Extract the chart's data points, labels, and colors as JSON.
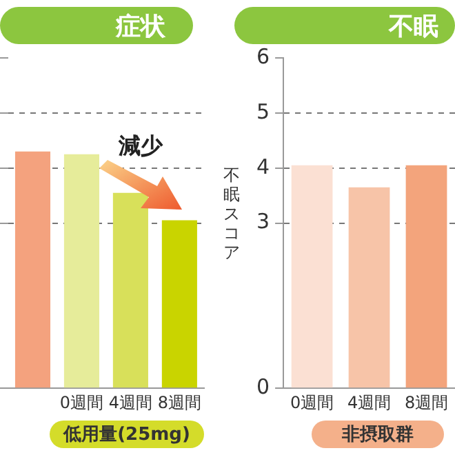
{
  "chart_data": [
    {
      "type": "bar",
      "title": "症状",
      "categories": [
        null,
        "0週間",
        "4週間",
        "8週間"
      ],
      "values": [
        4.3,
        4.25,
        3.55,
        3.05
      ],
      "colors": [
        "#f4a27e",
        "#e6ec9a",
        "#d8e05a",
        "#c9d400"
      ],
      "ylim": [
        0,
        6
      ],
      "yticks": [
        0,
        3,
        4,
        5,
        6
      ],
      "grid": "y",
      "tick_labels": "x",
      "annotations": [
        "減少",
        "低用量(25mg)"
      ]
    },
    {
      "type": "bar",
      "title": "不眠",
      "ylabel": "不眠スコア",
      "categories": [
        "0週間",
        "4週間",
        "8週間"
      ],
      "values": [
        4.05,
        3.65,
        4.05
      ],
      "colors": [
        "#fbe0d3",
        "#f7c4a8",
        "#f3a47c"
      ],
      "ylim": [
        0,
        6
      ],
      "yticks": [
        0,
        3,
        4,
        5,
        6
      ],
      "grid": "y",
      "annotations": [
        "非摂取群"
      ]
    }
  ]
}
